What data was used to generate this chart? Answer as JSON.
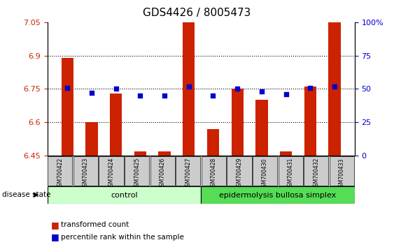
{
  "title": "GDS4426 / 8005473",
  "samples": [
    "GSM700422",
    "GSM700423",
    "GSM700424",
    "GSM700425",
    "GSM700426",
    "GSM700427",
    "GSM700428",
    "GSM700429",
    "GSM700430",
    "GSM700431",
    "GSM700432",
    "GSM700433"
  ],
  "transformed_count": [
    6.89,
    6.6,
    6.73,
    6.47,
    6.47,
    7.05,
    6.57,
    6.75,
    6.7,
    6.47,
    6.76,
    7.05
  ],
  "percentile_rank_values": [
    51,
    47,
    50,
    45,
    45,
    52,
    45,
    50,
    48,
    46,
    51,
    52
  ],
  "ylim_left": [
    6.45,
    7.05
  ],
  "ylim_right": [
    0,
    100
  ],
  "yticks_left": [
    6.45,
    6.6,
    6.75,
    6.9,
    7.05
  ],
  "yticks_right": [
    0,
    25,
    50,
    75,
    100
  ],
  "ytick_labels_left": [
    "6.45",
    "6.6",
    "6.75",
    "6.9",
    "7.05"
  ],
  "ytick_labels_right": [
    "0",
    "25",
    "50",
    "75",
    "100%"
  ],
  "hlines": [
    6.6,
    6.75,
    6.9
  ],
  "n_control": 6,
  "n_disease": 6,
  "control_label": "control",
  "disease_label": "epidermolysis bullosa simplex",
  "disease_state_label": "disease state",
  "bar_color": "#cc2200",
  "scatter_color": "#0000cc",
  "control_bg": "#ccffcc",
  "disease_bg": "#55dd55",
  "xticklabel_bg": "#cccccc",
  "legend_bar_label": "transformed count",
  "legend_scatter_label": "percentile rank within the sample",
  "bar_width": 0.5
}
